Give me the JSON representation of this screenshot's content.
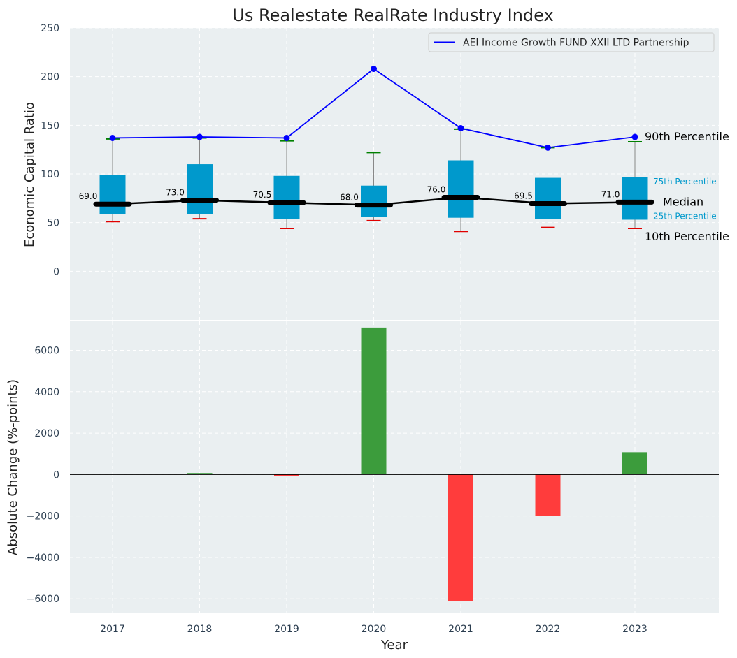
{
  "chart_data": {
    "title": "Us Realestate RealRate Industry Index",
    "top": {
      "type": "box",
      "ylabel": "Economic Capital Ratio",
      "ylim": [
        -50,
        250
      ],
      "yticks": [
        0,
        50,
        100,
        150,
        200,
        250
      ],
      "categories": [
        "2017",
        "2018",
        "2019",
        "2020",
        "2021",
        "2022",
        "2023"
      ],
      "p10": [
        51,
        54,
        44,
        52,
        41,
        45,
        44
      ],
      "p25": [
        59,
        59,
        54,
        56,
        55,
        54,
        53
      ],
      "median": [
        69.0,
        73.0,
        70.5,
        68.0,
        76.0,
        69.5,
        71.0
      ],
      "median_labels": [
        "69.0",
        "73.0",
        "70.5",
        "68.0",
        "76.0",
        "69.5",
        "71.0"
      ],
      "p75": [
        99,
        110,
        98,
        88,
        114,
        96,
        97
      ],
      "p90": [
        136,
        137,
        134,
        122,
        146,
        127,
        133
      ],
      "series": [
        {
          "name": "AEI Income Growth FUND XXII LTD Partnership",
          "values": [
            137,
            138,
            137,
            208,
            147,
            127,
            138
          ],
          "color": "#0000ff"
        }
      ],
      "annotations": {
        "p90": "90th Percentile",
        "p75": "75th Percentile",
        "median": "Median",
        "p25": "25th Percentile",
        "p10": "10th Percentile"
      },
      "legend_position": "upper-right",
      "grid": true
    },
    "bottom": {
      "type": "bar",
      "xlabel": "Year",
      "ylabel": "Absolute Change (%-points)",
      "ylim": [
        -6700,
        7400
      ],
      "yticks": [
        -6000,
        -4000,
        -2000,
        0,
        2000,
        4000,
        6000
      ],
      "ytick_labels": [
        "−6000",
        "−4000",
        "−2000",
        "0",
        "2000",
        "4000",
        "6000"
      ],
      "categories": [
        "2017",
        "2018",
        "2019",
        "2020",
        "2021",
        "2022",
        "2023"
      ],
      "values": [
        0,
        73,
        -73,
        7100,
        -6100,
        -2000,
        1080
      ],
      "positive_color": "#3c9c3c",
      "negative_color": "#ff3c3c",
      "grid": true
    },
    "colors": {
      "box": "#0099cc",
      "median_line": "#000000",
      "p90_cap": "#008000",
      "p10_cap": "#e00000"
    }
  }
}
